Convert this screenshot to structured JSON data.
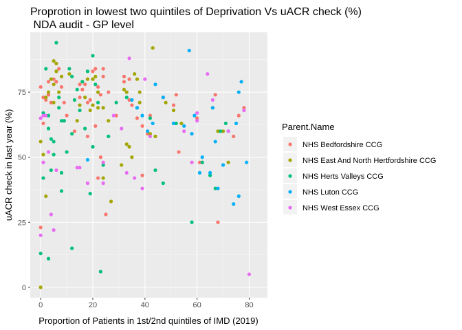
{
  "chart_data": {
    "type": "scatter",
    "title": "Proprotion in lowest two quintiles of Deprivation Vs uACR check (%)",
    "subtitle": " NDA audit - GP level",
    "xlabel": "Proportion of Patients in 1st/2nd quintiles of IMD (2019)",
    "ylabel": "uACR check in last year (%)",
    "xlim": [
      -4,
      87
    ],
    "ylim": [
      -4,
      98
    ],
    "xticks": [
      0,
      20,
      40,
      60,
      80
    ],
    "yticks": [
      0,
      25,
      50,
      75
    ],
    "legend_title": "Parent.Name",
    "legend_position": "right",
    "grid": true,
    "series": [
      {
        "name": "NHS Bedfordshire CCG",
        "color": "#F8766D",
        "points": [
          [
            0,
            77
          ],
          [
            1,
            73
          ],
          [
            2,
            72
          ],
          [
            3,
            74
          ],
          [
            3,
            79
          ],
          [
            4,
            71
          ],
          [
            5,
            80
          ],
          [
            6,
            79
          ],
          [
            0,
            23
          ],
          [
            1,
            63
          ],
          [
            7,
            84
          ],
          [
            8,
            77
          ],
          [
            9,
            71
          ],
          [
            10,
            66
          ],
          [
            13,
            60
          ],
          [
            15,
            78
          ],
          [
            15,
            73
          ],
          [
            16,
            76
          ],
          [
            17,
            78
          ],
          [
            18,
            71
          ],
          [
            19,
            72
          ],
          [
            20,
            83
          ],
          [
            21,
            84
          ],
          [
            21,
            62
          ],
          [
            22,
            77
          ],
          [
            23,
            50
          ],
          [
            23,
            74
          ],
          [
            24,
            84
          ],
          [
            24,
            81
          ],
          [
            26,
            75
          ],
          [
            25,
            28
          ],
          [
            29,
            66
          ],
          [
            32,
            81
          ],
          [
            32,
            79
          ],
          [
            33,
            75
          ],
          [
            34,
            80
          ],
          [
            34,
            72
          ],
          [
            35,
            70
          ],
          [
            37,
            65
          ],
          [
            39,
            62
          ],
          [
            39,
            43
          ],
          [
            41,
            59
          ],
          [
            42,
            66
          ],
          [
            47,
            73
          ],
          [
            51,
            70
          ],
          [
            52,
            74
          ],
          [
            53,
            52
          ],
          [
            60,
            65
          ],
          [
            61,
            48
          ],
          [
            62,
            48
          ],
          [
            66,
            69
          ],
          [
            67,
            74
          ],
          [
            68,
            25
          ],
          [
            74,
            58
          ],
          [
            76,
            66
          ],
          [
            78,
            69
          ],
          [
            22,
            42
          ],
          [
            18,
            58
          ]
        ]
      },
      {
        "name": "NHS East And North Hertfordshire CCG",
        "color": "#A3A500",
        "points": [
          [
            0,
            0
          ],
          [
            0,
            56
          ],
          [
            1,
            51
          ],
          [
            2,
            35
          ],
          [
            2,
            73
          ],
          [
            3,
            75
          ],
          [
            4,
            80
          ],
          [
            5,
            71
          ],
          [
            5,
            78
          ],
          [
            5,
            87
          ],
          [
            6,
            86
          ],
          [
            6,
            83
          ],
          [
            7,
            75
          ],
          [
            8,
            81
          ],
          [
            9,
            64
          ],
          [
            11,
            82
          ],
          [
            14,
            64
          ],
          [
            15,
            70
          ],
          [
            16,
            79
          ],
          [
            17,
            73
          ],
          [
            18,
            80
          ],
          [
            19,
            68
          ],
          [
            20,
            80
          ],
          [
            20,
            70
          ],
          [
            21,
            81
          ],
          [
            22,
            69
          ],
          [
            22,
            75
          ],
          [
            24,
            42
          ],
          [
            24,
            69
          ],
          [
            26,
            64
          ],
          [
            27,
            33
          ],
          [
            31,
            47
          ],
          [
            32,
            76
          ],
          [
            33,
            75
          ],
          [
            33,
            55
          ],
          [
            34,
            54
          ],
          [
            35,
            50
          ],
          [
            36,
            82
          ],
          [
            37,
            80
          ],
          [
            38,
            75
          ],
          [
            38,
            71
          ],
          [
            42,
            59
          ],
          [
            43,
            92
          ],
          [
            44,
            58
          ],
          [
            48,
            71
          ],
          [
            51,
            68
          ],
          [
            54,
            63
          ],
          [
            68,
            60
          ],
          [
            70,
            60
          ],
          [
            72,
            48
          ]
        ]
      },
      {
        "name": "NHS Herts Valleys CCG",
        "color": "#00BF7D",
        "points": [
          [
            0,
            13
          ],
          [
            1,
            42
          ],
          [
            1,
            67
          ],
          [
            2,
            84
          ],
          [
            3,
            61
          ],
          [
            3,
            66
          ],
          [
            3,
            11
          ],
          [
            4,
            57
          ],
          [
            4,
            45
          ],
          [
            5,
            56
          ],
          [
            5,
            51
          ],
          [
            6,
            94
          ],
          [
            7,
            69
          ],
          [
            7,
            73
          ],
          [
            8,
            64
          ],
          [
            8,
            37
          ],
          [
            8,
            44
          ],
          [
            9,
            64
          ],
          [
            10,
            52
          ],
          [
            11,
            84
          ],
          [
            12,
            81
          ],
          [
            12,
            59
          ],
          [
            12,
            15
          ],
          [
            13,
            72
          ],
          [
            14,
            76
          ],
          [
            15,
            68
          ],
          [
            16,
            79
          ],
          [
            17,
            61
          ],
          [
            18,
            83
          ],
          [
            19,
            36
          ],
          [
            20,
            89
          ],
          [
            20,
            54
          ],
          [
            21,
            78
          ],
          [
            22,
            71
          ],
          [
            23,
            6
          ],
          [
            24,
            47
          ],
          [
            26,
            58
          ],
          [
            29,
            71
          ],
          [
            33,
            73
          ],
          [
            37,
            69
          ],
          [
            42,
            65
          ],
          [
            44,
            45
          ],
          [
            47,
            40
          ],
          [
            52,
            63
          ],
          [
            58,
            25
          ],
          [
            62,
            48
          ],
          [
            65,
            43
          ],
          [
            67,
            38
          ],
          [
            69,
            60
          ],
          [
            71,
            63
          ]
        ]
      },
      {
        "name": "NHS Luton CCG",
        "color": "#00B0F6",
        "points": [
          [
            18,
            49
          ],
          [
            35,
            72
          ],
          [
            37,
            69
          ],
          [
            39,
            66
          ],
          [
            41,
            60
          ],
          [
            43,
            63
          ],
          [
            44,
            78
          ],
          [
            47,
            73
          ],
          [
            51,
            63
          ],
          [
            55,
            62
          ],
          [
            57,
            91
          ],
          [
            58,
            59
          ],
          [
            59,
            66
          ],
          [
            61,
            44
          ],
          [
            62,
            50
          ],
          [
            65,
            44
          ],
          [
            66,
            69
          ],
          [
            67,
            56
          ],
          [
            68,
            38
          ],
          [
            70,
            47
          ],
          [
            72,
            60
          ],
          [
            74,
            32
          ],
          [
            75,
            63
          ],
          [
            76,
            35
          ],
          [
            76,
            75
          ],
          [
            77,
            79
          ],
          [
            79,
            48
          ]
        ]
      },
      {
        "name": "NHS West Essex CCG",
        "color": "#E76BF3",
        "points": [
          [
            0,
            20
          ],
          [
            0,
            65
          ],
          [
            1,
            66
          ],
          [
            1,
            48
          ],
          [
            2,
            66
          ],
          [
            3,
            52
          ],
          [
            4,
            28
          ],
          [
            5,
            22
          ],
          [
            6,
            45
          ],
          [
            14,
            46
          ],
          [
            15,
            46
          ],
          [
            18,
            40
          ],
          [
            24,
            40
          ],
          [
            24,
            48
          ],
          [
            28,
            66
          ],
          [
            31,
            61
          ],
          [
            33,
            44
          ],
          [
            34,
            88
          ],
          [
            36,
            42
          ],
          [
            39,
            38
          ],
          [
            40,
            80
          ],
          [
            42,
            58
          ],
          [
            55,
            60
          ],
          [
            58,
            48
          ],
          [
            60,
            64
          ],
          [
            60,
            67
          ],
          [
            64,
            82
          ],
          [
            66,
            72
          ],
          [
            72,
            60
          ],
          [
            78,
            68
          ],
          [
            80,
            5
          ]
        ]
      }
    ]
  }
}
